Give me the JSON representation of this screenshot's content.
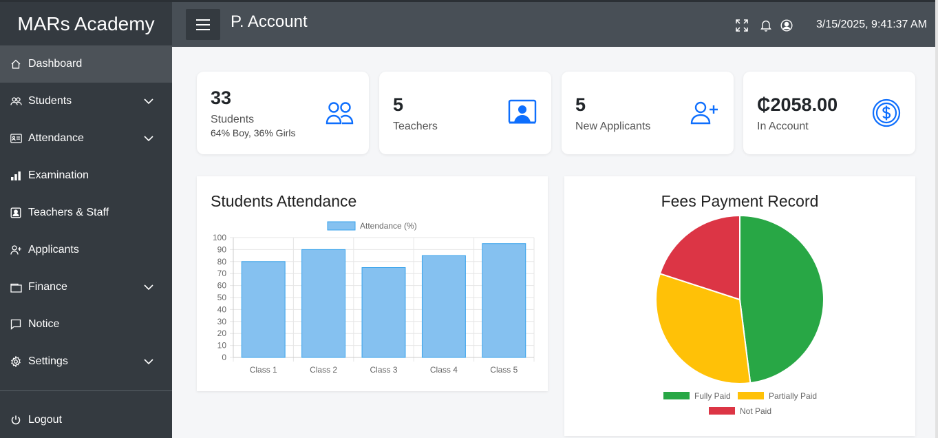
{
  "sidebar": {
    "brand": "MARs Academy",
    "items": [
      {
        "label": "Dashboard",
        "icon": "home-icon",
        "active": true,
        "expandable": false
      },
      {
        "label": "Students",
        "icon": "users-icon",
        "active": false,
        "expandable": true
      },
      {
        "label": "Attendance",
        "icon": "id-card-icon",
        "active": false,
        "expandable": true
      },
      {
        "label": "Examination",
        "icon": "bar-chart-icon",
        "active": false,
        "expandable": false
      },
      {
        "label": "Teachers & Staff",
        "icon": "person-badge-icon",
        "active": false,
        "expandable": false
      },
      {
        "label": "Applicants",
        "icon": "user-plus-icon",
        "active": false,
        "expandable": false
      },
      {
        "label": "Finance",
        "icon": "wallet-icon",
        "active": false,
        "expandable": true
      },
      {
        "label": "Notice",
        "icon": "chat-icon",
        "active": false,
        "expandable": false
      },
      {
        "label": "Settings",
        "icon": "gear-icon",
        "active": false,
        "expandable": true
      }
    ],
    "logout": "Logout"
  },
  "header": {
    "title": "P. Account",
    "datetime": "3/15/2025, 9:41:37 AM"
  },
  "stats": [
    {
      "value": "33",
      "label": "Students",
      "sub": "64% Boy, 36% Girls",
      "icon": "people-icon"
    },
    {
      "value": "5",
      "label": "Teachers",
      "sub": "",
      "icon": "teacher-screen-icon"
    },
    {
      "value": "5",
      "label": "New Applicants",
      "sub": "",
      "icon": "person-plus-icon"
    },
    {
      "value": "₵2058.00",
      "label": "In Account",
      "sub": "",
      "icon": "dollar-circle-icon"
    }
  ],
  "colors": {
    "accent": "#0d6efd",
    "bar_fill": "#85c1f0",
    "bar_border": "#36a2eb",
    "fully_paid": "#28a745",
    "partially_paid": "#ffc107",
    "not_paid": "#dc3545"
  },
  "chart_data": [
    {
      "type": "bar",
      "title": "Students Attendance",
      "categories": [
        "Class 1",
        "Class 2",
        "Class 3",
        "Class 4",
        "Class 5"
      ],
      "series": [
        {
          "name": "Attendance (%)",
          "values": [
            80,
            90,
            75,
            85,
            95
          ]
        }
      ],
      "ylim": [
        0,
        100
      ],
      "yticks": [
        0,
        10,
        20,
        30,
        40,
        50,
        60,
        70,
        80,
        90,
        100
      ],
      "grid": true,
      "legend": "top"
    },
    {
      "type": "pie",
      "title": "Fees Payment Record",
      "labels": [
        "Fully Paid",
        "Partially Paid",
        "Not Paid"
      ],
      "values": [
        48,
        32,
        20
      ],
      "legend": "bottom"
    }
  ]
}
